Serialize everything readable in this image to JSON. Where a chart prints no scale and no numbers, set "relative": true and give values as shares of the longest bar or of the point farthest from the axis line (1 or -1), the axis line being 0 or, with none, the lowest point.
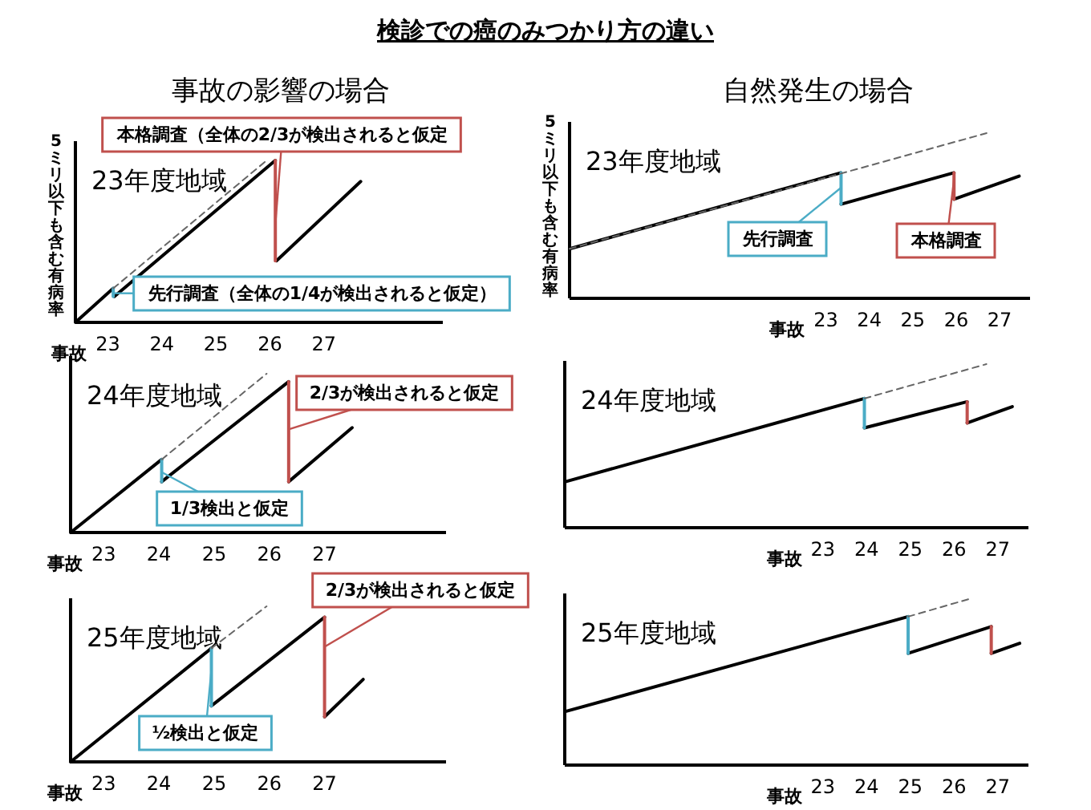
{
  "chart_data": [
    {
      "type": "other",
      "title": "検診での癌のみつかり方の違い"
    },
    {
      "type": "line",
      "subtitle": "事故の影響の場合",
      "title": "23年度地域",
      "ylabel": "5ミリ以下も含む有病率",
      "xlabel": "事故",
      "relative": true,
      "xlim": [
        22.4,
        29.2
      ],
      "xticks": [
        23,
        24,
        25,
        26,
        27
      ],
      "series": [
        {
          "color": "#000000",
          "x": [
            22.4,
            23.1
          ],
          "values": [
            0,
            0.21
          ]
        },
        {
          "color": "#000000",
          "x": [
            23.12,
            26.1
          ],
          "values": [
            0.16,
            1.0
          ]
        },
        {
          "color": "#000000",
          "x": [
            26.12,
            27.68
          ],
          "values": [
            0.38,
            0.87
          ]
        },
        {
          "color": "#4bacc6",
          "x": [
            23.1,
            23.1
          ],
          "values": [
            0.21,
            0.16
          ]
        },
        {
          "color": "#c0504d",
          "x": [
            26.1,
            26.1
          ],
          "values": [
            1.0,
            0.38
          ]
        },
        {
          "color": "#666666",
          "line_style": "dashed",
          "x": [
            23.1,
            25.94
          ],
          "values": [
            0.21,
            1.0
          ]
        }
      ],
      "annotations": [
        {
          "text": "本格調査（全体の2/3が検出されると仮定",
          "x": 26.1,
          "y": 0.6
        },
        {
          "text": "先行調査（全体の1/4が検出されると仮定）",
          "x": 23.1,
          "y": 0.18
        }
      ]
    },
    {
      "type": "line",
      "subtitle": "自然発生の場合",
      "title": "23年度地域",
      "ylabel": "5ミリ以下も含む有病率",
      "xlabel": "事故",
      "relative": true,
      "xlim": [
        17.1,
        27.7
      ],
      "xticks": [
        23,
        24,
        25,
        26,
        27
      ],
      "series": [
        {
          "color": "#000000",
          "x": [
            17.1,
            23.35
          ],
          "values": [
            0.3,
            0.76
          ]
        },
        {
          "color": "#000000",
          "x": [
            23.35,
            25.95
          ],
          "values": [
            0.57,
            0.76
          ]
        },
        {
          "color": "#000000",
          "x": [
            25.95,
            27.45
          ],
          "values": [
            0.6,
            0.74
          ]
        },
        {
          "color": "#4bacc6",
          "x": [
            23.35,
            23.35
          ],
          "values": [
            0.76,
            0.57
          ]
        },
        {
          "color": "#c0504d",
          "x": [
            25.95,
            25.95
          ],
          "values": [
            0.76,
            0.6
          ]
        },
        {
          "color": "#666666",
          "line_style": "dashed",
          "x": [
            17.1,
            26.7
          ],
          "values": [
            0.3,
            1.0
          ]
        }
      ],
      "annotations": [
        {
          "text": "先行調査",
          "x": 23.35,
          "y": 0.67
        },
        {
          "text": "本格調査",
          "x": 25.95,
          "y": 0.72
        }
      ]
    },
    {
      "type": "line",
      "title": "24年度地域",
      "xlabel": "事故",
      "relative": true,
      "xlim": [
        22.4,
        29.2
      ],
      "xticks": [
        23,
        24,
        25,
        26,
        27
      ],
      "series": [
        {
          "color": "#000000",
          "x": [
            22.4,
            24.05
          ],
          "values": [
            0,
            0.46
          ]
        },
        {
          "color": "#000000",
          "x": [
            24.05,
            26.35
          ],
          "values": [
            0.32,
            0.95
          ]
        },
        {
          "color": "#000000",
          "x": [
            26.35,
            27.5
          ],
          "values": [
            0.32,
            0.66
          ]
        },
        {
          "color": "#4bacc6",
          "x": [
            24.05,
            24.05
          ],
          "values": [
            0.46,
            0.32
          ]
        },
        {
          "color": "#c0504d",
          "x": [
            26.35,
            26.35
          ],
          "values": [
            0.95,
            0.32
          ]
        },
        {
          "color": "#666666",
          "line_style": "dashed",
          "x": [
            24.05,
            25.95
          ],
          "values": [
            0.46,
            1.0
          ]
        }
      ],
      "annotations": [
        {
          "text": "2/3が検出されると仮定",
          "x": 26.35,
          "y": 0.65
        },
        {
          "text": "1/3検出と仮定",
          "x": 24.05,
          "y": 0.38
        }
      ]
    },
    {
      "type": "line",
      "title": "24年度地域",
      "xlabel": "事故",
      "relative": true,
      "xlim": [
        17.1,
        27.7
      ],
      "xticks": [
        23,
        24,
        25,
        26,
        27
      ],
      "series": [
        {
          "color": "#000000",
          "x": [
            17.1,
            23.95
          ],
          "values": [
            0.28,
            0.79
          ]
        },
        {
          "color": "#000000",
          "x": [
            23.95,
            26.3
          ],
          "values": [
            0.61,
            0.77
          ]
        },
        {
          "color": "#000000",
          "x": [
            26.3,
            27.33
          ],
          "values": [
            0.64,
            0.74
          ]
        },
        {
          "color": "#4bacc6",
          "x": [
            23.95,
            23.95
          ],
          "values": [
            0.79,
            0.61
          ]
        },
        {
          "color": "#c0504d",
          "x": [
            26.3,
            26.3
          ],
          "values": [
            0.77,
            0.64
          ]
        },
        {
          "color": "#666666",
          "line_style": "dashed",
          "x": [
            23.95,
            26.74
          ],
          "values": [
            0.79,
            1.0
          ]
        }
      ]
    },
    {
      "type": "line",
      "title": "25年度地域",
      "xlabel": "事故",
      "relative": true,
      "xlim": [
        22.4,
        29.2
      ],
      "xticks": [
        23,
        24,
        25,
        26,
        27
      ],
      "series": [
        {
          "color": "#000000",
          "x": [
            22.4,
            24.95
          ],
          "values": [
            0,
            0.73
          ]
        },
        {
          "color": "#000000",
          "x": [
            24.95,
            27.0
          ],
          "values": [
            0.36,
            0.93
          ]
        },
        {
          "color": "#000000",
          "x": [
            27.0,
            27.7
          ],
          "values": [
            0.29,
            0.53
          ]
        },
        {
          "color": "#4bacc6",
          "x": [
            24.95,
            24.95
          ],
          "values": [
            0.73,
            0.36
          ]
        },
        {
          "color": "#c0504d",
          "x": [
            27.0,
            27.0
          ],
          "values": [
            0.93,
            0.29
          ]
        },
        {
          "color": "#666666",
          "line_style": "dashed",
          "x": [
            24.95,
            25.95
          ],
          "values": [
            0.73,
            1.0
          ]
        }
      ],
      "annotations": [
        {
          "text": "2/3が検出されると仮定",
          "x": 27.0,
          "y": 0.74
        },
        {
          "text": "½検出と仮定",
          "x": 24.95,
          "y": 0.59
        }
      ]
    },
    {
      "type": "line",
      "title": "25年度地域",
      "xlabel": "事故",
      "relative": true,
      "xlim": [
        17.1,
        27.7
      ],
      "xticks": [
        23,
        24,
        25,
        26,
        27
      ],
      "series": [
        {
          "color": "#000000",
          "x": [
            17.1,
            24.95
          ],
          "values": [
            0.32,
            0.89
          ]
        },
        {
          "color": "#000000",
          "x": [
            24.95,
            26.85
          ],
          "values": [
            0.67,
            0.83
          ]
        },
        {
          "color": "#000000",
          "x": [
            26.85,
            27.5
          ],
          "values": [
            0.67,
            0.73
          ]
        },
        {
          "color": "#4bacc6",
          "x": [
            24.95,
            24.95
          ],
          "values": [
            0.89,
            0.67
          ]
        },
        {
          "color": "#c0504d",
          "x": [
            26.85,
            26.85
          ],
          "values": [
            0.83,
            0.67
          ]
        },
        {
          "color": "#666666",
          "line_style": "dashed",
          "x": [
            24.95,
            26.4
          ],
          "values": [
            0.89,
            1.0
          ]
        }
      ]
    }
  ]
}
